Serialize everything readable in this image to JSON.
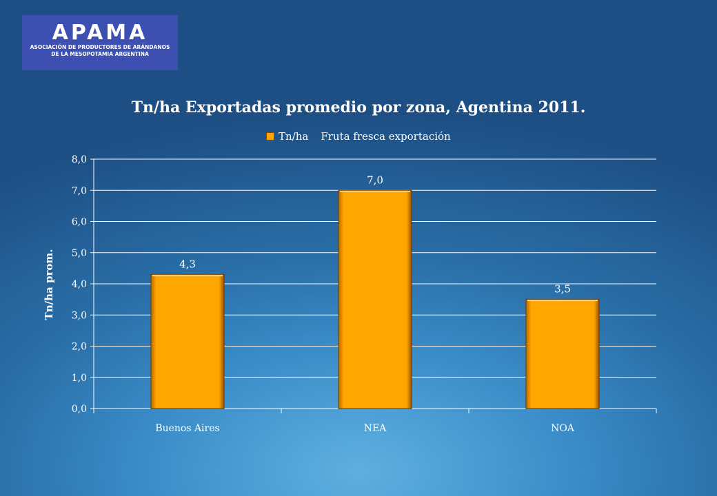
{
  "logo": {
    "word": "APAMA",
    "line1": "ASOCIACIÓN DE PRODUCTORES DE ARÁNDANOS",
    "line2": "DE LA MESOPOTAMIA ARGENTINA"
  },
  "chart_data": {
    "type": "bar",
    "title": "Tn/ha Exportadas promedio por zona, Agentina 2011.",
    "legend": [
      "Tn/ha"
    ],
    "legend_note": "Fruta fresca exportación",
    "categories": [
      "Buenos Aires",
      "NEA",
      "NOA"
    ],
    "series": [
      {
        "name": "Tn/ha",
        "values": [
          4.3,
          7.0,
          3.5
        ]
      }
    ],
    "data_labels": [
      "4,3",
      "7,0",
      "3,5"
    ],
    "xlabel": "",
    "ylabel": "Tn/ha prom.",
    "ylim": [
      0,
      8
    ],
    "yticks": [
      "0,0",
      "1,0",
      "2,0",
      "3,0",
      "4,0",
      "5,0",
      "6,0",
      "7,0",
      "8,0"
    ],
    "grid": true,
    "legend_position": "top",
    "bar_color": "#ffa600"
  }
}
